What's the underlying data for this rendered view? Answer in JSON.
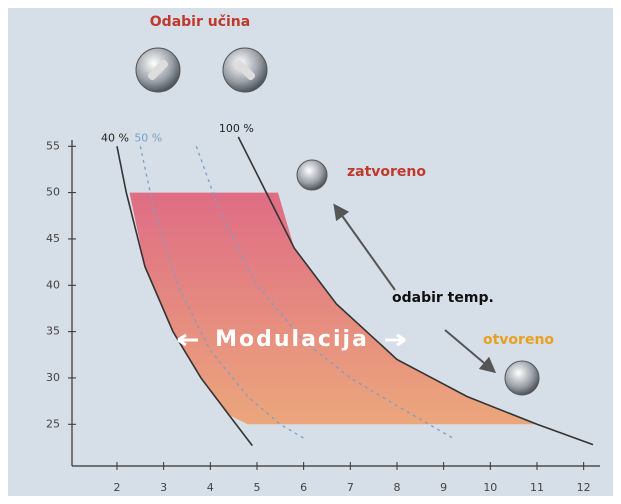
{
  "chart_data": {
    "type": "line",
    "title": "Odabir učina",
    "xlim": [
      1,
      12.2
    ],
    "ylim": [
      20.5,
      56
    ],
    "xticks": [
      2,
      3,
      4,
      5,
      6,
      7,
      8,
      9,
      10,
      11,
      12
    ],
    "yticks": [
      25,
      30,
      35,
      40,
      45,
      50,
      55
    ],
    "grid": false,
    "series": [
      {
        "name": "40 %",
        "color": "#333333",
        "dashed": false,
        "x": [
          2.0,
          2.2,
          2.6,
          3.2,
          3.8,
          4.4,
          4.9
        ],
        "values": [
          55,
          50,
          42,
          35,
          30,
          26,
          22.7
        ]
      },
      {
        "name": "50 %",
        "color": "#7aa0c8",
        "dashed": true,
        "x": [
          2.5,
          2.8,
          3.3,
          4.0,
          4.8,
          5.5,
          6.0
        ],
        "values": [
          55,
          48,
          40,
          33,
          28,
          25,
          23.5
        ]
      },
      {
        "color": "#7aa0c8",
        "dashed": true,
        "x": [
          3.7,
          4.2,
          5.0,
          6.0,
          7.0,
          8.0,
          9.2
        ],
        "values": [
          55,
          48,
          40,
          34,
          30,
          27,
          23.5
        ]
      },
      {
        "name": "100 %",
        "color": "#333333",
        "dashed": false,
        "x": [
          4.6,
          5.2,
          5.8,
          6.7,
          8.0,
          9.5,
          11.0,
          12.2
        ],
        "values": [
          56,
          50,
          44,
          38,
          32,
          28,
          25,
          22.8
        ]
      }
    ],
    "region": {
      "x": [
        2.27,
        5.45,
        5.8,
        6.7,
        8.0,
        9.5,
        11.0,
        4.8,
        4.4,
        3.8,
        3.2,
        2.6
      ],
      "values": [
        50,
        50,
        44,
        38,
        32,
        28,
        25,
        25,
        26,
        30,
        35,
        42
      ]
    },
    "annotations": [
      "zatvoreno",
      "odabir temp.",
      "otvoreno",
      "Modulacija"
    ]
  }
}
